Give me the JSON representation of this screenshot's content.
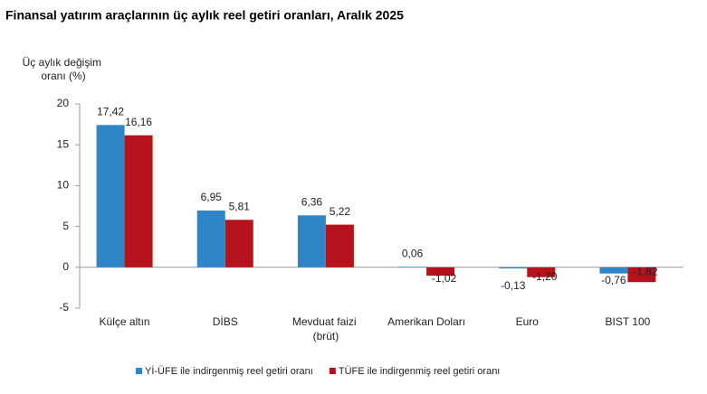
{
  "chart_data": {
    "type": "bar",
    "title": "Finansal yatırım araçlarının üç aylık reel getiri oranları, Aralık 2025",
    "y_label": "Üç aylık değişim oranı (%)",
    "categories": [
      "Külçe altın",
      "DİBS",
      "Mevduat faizi (brüt)",
      "Amerikan Doları",
      "Euro",
      "BIST 100"
    ],
    "series": [
      {
        "name": "Yİ-ÜFE ile indirgenmiş reel getiri oranı",
        "color": "#2e86c9",
        "values": [
          17.42,
          6.95,
          6.36,
          0.06,
          -0.13,
          -0.76
        ],
        "value_labels": [
          "17,42",
          "6,95",
          "6,36",
          "0,06",
          "-0,13",
          "-0,76"
        ]
      },
      {
        "name": "TÜFE ile indirgenmiş reel getiri oranı",
        "color": "#b5121b",
        "values": [
          16.16,
          5.81,
          5.22,
          -1.02,
          -1.2,
          -1.82
        ],
        "value_labels": [
          "16,16",
          "5,81",
          "5,22",
          "-1,02",
          "-1,20",
          "-1,82"
        ]
      }
    ],
    "ylim": [
      -5,
      20
    ],
    "yticks": [
      -5,
      0,
      5,
      10,
      15,
      20
    ]
  }
}
